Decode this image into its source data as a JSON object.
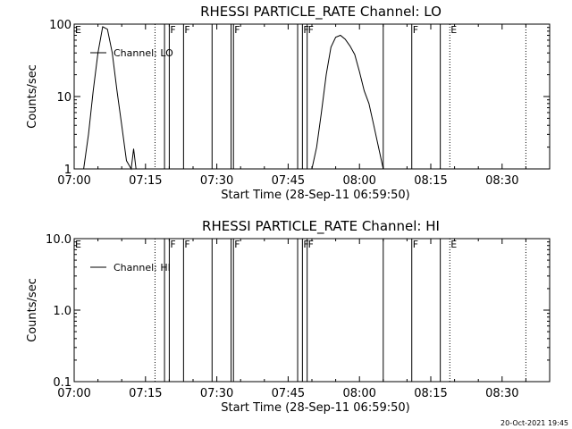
{
  "footer_timestamp": "20-Oct-2021 19:45",
  "chart_data": [
    {
      "type": "line",
      "title": "RHESSI PARTICLE_RATE Channel: LO",
      "xlabel": "Start Time (28-Sep-11 06:59:50)",
      "ylabel": "Counts/sec",
      "yscale": "log",
      "xlim": [
        "07:00",
        "08:40"
      ],
      "ylim": [
        1,
        100
      ],
      "x_ticks": [
        "07:00",
        "07:15",
        "07:30",
        "07:45",
        "08:00",
        "08:15",
        "08:30"
      ],
      "y_ticks": [
        "1",
        "10",
        "100"
      ],
      "grid": false,
      "legend": {
        "label": "Channel: LO",
        "position": "top-left"
      },
      "series": [
        {
          "name": "Channel: LO",
          "x": [
            "07:02",
            "07:03",
            "07:04",
            "07:05",
            "07:06",
            "07:07",
            "07:08",
            "07:09",
            "07:10",
            "07:11",
            "07:12",
            "07:12.5",
            "07:13"
          ],
          "y": [
            1,
            3,
            12,
            40,
            92,
            85,
            40,
            12,
            4,
            1.3,
            1,
            1.9,
            1
          ]
        },
        {
          "name": "Channel: LO",
          "x": [
            "07:50",
            "07:51",
            "07:52",
            "07:53",
            "07:54",
            "07:55",
            "07:56",
            "07:57",
            "07:58",
            "07:59",
            "08:00",
            "08:01",
            "08:02",
            "08:03",
            "08:04",
            "08:05"
          ],
          "y": [
            1,
            2,
            6,
            20,
            48,
            66,
            70,
            62,
            50,
            38,
            22,
            12,
            8,
            4,
            2,
            1
          ]
        }
      ],
      "flags": [
        {
          "x": "07:00",
          "label": "E",
          "style": "solid"
        },
        {
          "x": "07:17",
          "label": "",
          "style": "dotted"
        },
        {
          "x": "07:19",
          "label": "",
          "style": "solid"
        },
        {
          "x": "07:20",
          "label": "F",
          "style": "solid"
        },
        {
          "x": "07:23",
          "label": "F",
          "style": "solid"
        },
        {
          "x": "07:29",
          "label": "",
          "style": "solid"
        },
        {
          "x": "07:33",
          "label": "",
          "style": "solid"
        },
        {
          "x": "07:33.5",
          "label": "F",
          "style": "solid"
        },
        {
          "x": "07:47",
          "label": "",
          "style": "solid"
        },
        {
          "x": "07:48",
          "label": "F",
          "style": "solid"
        },
        {
          "x": "07:49",
          "label": "F",
          "style": "solid"
        },
        {
          "x": "08:05",
          "label": "",
          "style": "solid"
        },
        {
          "x": "08:11",
          "label": "F",
          "style": "solid"
        },
        {
          "x": "08:17",
          "label": "",
          "style": "solid"
        },
        {
          "x": "08:19",
          "label": "E",
          "style": "dotted"
        },
        {
          "x": "08:35",
          "label": "",
          "style": "dotted"
        }
      ]
    },
    {
      "type": "line",
      "title": "RHESSI PARTICLE_RATE Channel: HI",
      "xlabel": "Start Time (28-Sep-11 06:59:50)",
      "ylabel": "Counts/sec",
      "yscale": "log",
      "xlim": [
        "07:00",
        "08:40"
      ],
      "ylim": [
        0.1,
        10
      ],
      "x_ticks": [
        "07:00",
        "07:15",
        "07:30",
        "07:45",
        "08:00",
        "08:15",
        "08:30"
      ],
      "y_ticks": [
        "0.1",
        "1.0",
        "10.0"
      ],
      "grid": false,
      "legend": {
        "label": "Channel: HI",
        "position": "top-left"
      },
      "series": [],
      "flags": [
        {
          "x": "07:00",
          "label": "E",
          "style": "solid"
        },
        {
          "x": "07:17",
          "label": "",
          "style": "dotted"
        },
        {
          "x": "07:19",
          "label": "",
          "style": "solid"
        },
        {
          "x": "07:20",
          "label": "F",
          "style": "solid"
        },
        {
          "x": "07:23",
          "label": "F",
          "style": "solid"
        },
        {
          "x": "07:29",
          "label": "",
          "style": "solid"
        },
        {
          "x": "07:33",
          "label": "",
          "style": "solid"
        },
        {
          "x": "07:33.5",
          "label": "F",
          "style": "solid"
        },
        {
          "x": "07:47",
          "label": "",
          "style": "solid"
        },
        {
          "x": "07:48",
          "label": "F",
          "style": "solid"
        },
        {
          "x": "07:49",
          "label": "F",
          "style": "solid"
        },
        {
          "x": "08:05",
          "label": "",
          "style": "solid"
        },
        {
          "x": "08:11",
          "label": "F",
          "style": "solid"
        },
        {
          "x": "08:17",
          "label": "",
          "style": "solid"
        },
        {
          "x": "08:19",
          "label": "E",
          "style": "dotted"
        },
        {
          "x": "08:35",
          "label": "",
          "style": "dotted"
        }
      ]
    }
  ]
}
